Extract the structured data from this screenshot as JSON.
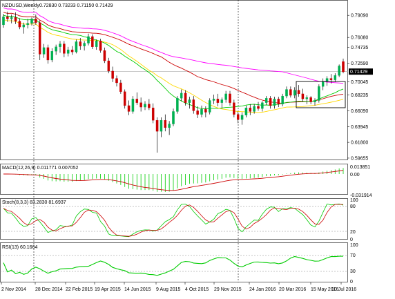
{
  "chart_data": [
    {
      "type": "candlestick",
      "title": "NZDUSD,Weekly",
      "ohlc_label": "0.72830 0.73233 0.71150 0.71429",
      "last_price": "0.71429",
      "ylim": [
        0.5965,
        0.808
      ],
      "yticks": [
        "0.79090",
        "0.76080",
        "0.74735",
        "0.72590",
        "0.71429",
        "0.70045",
        "0.68235",
        "0.66090",
        "0.63945",
        "0.61800",
        "0.59655"
      ],
      "xticks": [
        "2 Nov 2014",
        "28 Dec 2014",
        "22 Feb 2015",
        "19 Apr 2015",
        "14 Jun 2015",
        "9 Aug 2015",
        "4 Oct 2015",
        "29 Nov 2015",
        "24 Jan 2016",
        "20 Mar 2016",
        "15 May 2016",
        "10 Jul 2016"
      ],
      "series": [
        {
          "values": [
            {
              "o": 0.778,
              "h": 0.793,
              "l": 0.774,
              "c": 0.789
            },
            {
              "o": 0.789,
              "h": 0.796,
              "l": 0.782,
              "c": 0.786
            },
            {
              "o": 0.786,
              "h": 0.792,
              "l": 0.78,
              "c": 0.788
            },
            {
              "o": 0.788,
              "h": 0.795,
              "l": 0.779,
              "c": 0.783
            },
            {
              "o": 0.783,
              "h": 0.787,
              "l": 0.772,
              "c": 0.775
            },
            {
              "o": 0.775,
              "h": 0.781,
              "l": 0.766,
              "c": 0.778
            },
            {
              "o": 0.778,
              "h": 0.786,
              "l": 0.773,
              "c": 0.78
            },
            {
              "o": 0.78,
              "h": 0.788,
              "l": 0.777,
              "c": 0.786
            },
            {
              "o": 0.786,
              "h": 0.792,
              "l": 0.778,
              "c": 0.781
            },
            {
              "o": 0.781,
              "h": 0.784,
              "l": 0.73,
              "c": 0.738
            },
            {
              "o": 0.738,
              "h": 0.752,
              "l": 0.733,
              "c": 0.747
            },
            {
              "o": 0.747,
              "h": 0.751,
              "l": 0.725,
              "c": 0.73
            },
            {
              "o": 0.73,
              "h": 0.746,
              "l": 0.727,
              "c": 0.742
            },
            {
              "o": 0.742,
              "h": 0.751,
              "l": 0.737,
              "c": 0.748
            },
            {
              "o": 0.748,
              "h": 0.756,
              "l": 0.74,
              "c": 0.752
            },
            {
              "o": 0.752,
              "h": 0.756,
              "l": 0.734,
              "c": 0.739
            },
            {
              "o": 0.739,
              "h": 0.748,
              "l": 0.735,
              "c": 0.744
            },
            {
              "o": 0.744,
              "h": 0.749,
              "l": 0.737,
              "c": 0.741
            },
            {
              "o": 0.741,
              "h": 0.758,
              "l": 0.739,
              "c": 0.755
            },
            {
              "o": 0.755,
              "h": 0.76,
              "l": 0.744,
              "c": 0.749
            },
            {
              "o": 0.749,
              "h": 0.756,
              "l": 0.743,
              "c": 0.753
            },
            {
              "o": 0.753,
              "h": 0.766,
              "l": 0.75,
              "c": 0.762
            },
            {
              "o": 0.762,
              "h": 0.765,
              "l": 0.745,
              "c": 0.748
            },
            {
              "o": 0.748,
              "h": 0.758,
              "l": 0.744,
              "c": 0.756
            },
            {
              "o": 0.756,
              "h": 0.759,
              "l": 0.74,
              "c": 0.743
            },
            {
              "o": 0.743,
              "h": 0.747,
              "l": 0.726,
              "c": 0.729
            },
            {
              "o": 0.729,
              "h": 0.733,
              "l": 0.712,
              "c": 0.715
            },
            {
              "o": 0.715,
              "h": 0.721,
              "l": 0.7,
              "c": 0.705
            },
            {
              "o": 0.705,
              "h": 0.709,
              "l": 0.694,
              "c": 0.699
            },
            {
              "o": 0.699,
              "h": 0.703,
              "l": 0.684,
              "c": 0.687
            },
            {
              "o": 0.687,
              "h": 0.69,
              "l": 0.664,
              "c": 0.668
            },
            {
              "o": 0.668,
              "h": 0.675,
              "l": 0.655,
              "c": 0.66
            },
            {
              "o": 0.66,
              "h": 0.681,
              "l": 0.657,
              "c": 0.677
            },
            {
              "o": 0.677,
              "h": 0.686,
              "l": 0.669,
              "c": 0.672
            },
            {
              "o": 0.672,
              "h": 0.679,
              "l": 0.66,
              "c": 0.666
            },
            {
              "o": 0.666,
              "h": 0.674,
              "l": 0.662,
              "c": 0.67
            },
            {
              "o": 0.67,
              "h": 0.677,
              "l": 0.662,
              "c": 0.665
            },
            {
              "o": 0.665,
              "h": 0.671,
              "l": 0.644,
              "c": 0.648
            },
            {
              "o": 0.648,
              "h": 0.652,
              "l": 0.604,
              "c": 0.633
            },
            {
              "o": 0.633,
              "h": 0.652,
              "l": 0.625,
              "c": 0.648
            },
            {
              "o": 0.648,
              "h": 0.656,
              "l": 0.633,
              "c": 0.638
            },
            {
              "o": 0.638,
              "h": 0.647,
              "l": 0.628,
              "c": 0.643
            },
            {
              "o": 0.643,
              "h": 0.664,
              "l": 0.64,
              "c": 0.66
            },
            {
              "o": 0.66,
              "h": 0.681,
              "l": 0.657,
              "c": 0.678
            },
            {
              "o": 0.678,
              "h": 0.69,
              "l": 0.674,
              "c": 0.685
            },
            {
              "o": 0.685,
              "h": 0.689,
              "l": 0.668,
              "c": 0.672
            },
            {
              "o": 0.672,
              "h": 0.68,
              "l": 0.664,
              "c": 0.676
            },
            {
              "o": 0.676,
              "h": 0.681,
              "l": 0.657,
              "c": 0.661
            },
            {
              "o": 0.661,
              "h": 0.667,
              "l": 0.651,
              "c": 0.656
            },
            {
              "o": 0.656,
              "h": 0.668,
              "l": 0.652,
              "c": 0.663
            },
            {
              "o": 0.663,
              "h": 0.667,
              "l": 0.652,
              "c": 0.659
            },
            {
              "o": 0.659,
              "h": 0.678,
              "l": 0.656,
              "c": 0.675
            },
            {
              "o": 0.675,
              "h": 0.683,
              "l": 0.67,
              "c": 0.677
            },
            {
              "o": 0.677,
              "h": 0.684,
              "l": 0.667,
              "c": 0.672
            },
            {
              "o": 0.672,
              "h": 0.679,
              "l": 0.664,
              "c": 0.676
            },
            {
              "o": 0.676,
              "h": 0.688,
              "l": 0.672,
              "c": 0.684
            },
            {
              "o": 0.684,
              "h": 0.688,
              "l": 0.668,
              "c": 0.672
            },
            {
              "o": 0.672,
              "h": 0.676,
              "l": 0.652,
              "c": 0.656
            },
            {
              "o": 0.656,
              "h": 0.66,
              "l": 0.644,
              "c": 0.649
            },
            {
              "o": 0.649,
              "h": 0.659,
              "l": 0.642,
              "c": 0.655
            },
            {
              "o": 0.655,
              "h": 0.668,
              "l": 0.652,
              "c": 0.665
            },
            {
              "o": 0.665,
              "h": 0.67,
              "l": 0.655,
              "c": 0.66
            },
            {
              "o": 0.66,
              "h": 0.67,
              "l": 0.657,
              "c": 0.667
            },
            {
              "o": 0.667,
              "h": 0.673,
              "l": 0.661,
              "c": 0.664
            },
            {
              "o": 0.664,
              "h": 0.674,
              "l": 0.66,
              "c": 0.672
            },
            {
              "o": 0.672,
              "h": 0.681,
              "l": 0.669,
              "c": 0.678
            },
            {
              "o": 0.678,
              "h": 0.681,
              "l": 0.664,
              "c": 0.668
            },
            {
              "o": 0.668,
              "h": 0.68,
              "l": 0.664,
              "c": 0.677
            },
            {
              "o": 0.677,
              "h": 0.68,
              "l": 0.666,
              "c": 0.67
            },
            {
              "o": 0.67,
              "h": 0.684,
              "l": 0.667,
              "c": 0.681
            },
            {
              "o": 0.681,
              "h": 0.694,
              "l": 0.678,
              "c": 0.69
            },
            {
              "o": 0.69,
              "h": 0.694,
              "l": 0.679,
              "c": 0.682
            },
            {
              "o": 0.682,
              "h": 0.693,
              "l": 0.678,
              "c": 0.689
            },
            {
              "o": 0.689,
              "h": 0.696,
              "l": 0.68,
              "c": 0.684
            },
            {
              "o": 0.684,
              "h": 0.691,
              "l": 0.673,
              "c": 0.677
            },
            {
              "o": 0.677,
              "h": 0.682,
              "l": 0.67,
              "c": 0.679
            },
            {
              "o": 0.679,
              "h": 0.681,
              "l": 0.67,
              "c": 0.673
            },
            {
              "o": 0.673,
              "h": 0.678,
              "l": 0.668,
              "c": 0.675
            },
            {
              "o": 0.675,
              "h": 0.697,
              "l": 0.672,
              "c": 0.694
            },
            {
              "o": 0.694,
              "h": 0.705,
              "l": 0.689,
              "c": 0.701
            },
            {
              "o": 0.701,
              "h": 0.708,
              "l": 0.695,
              "c": 0.705
            },
            {
              "o": 0.705,
              "h": 0.711,
              "l": 0.698,
              "c": 0.703
            },
            {
              "o": 0.703,
              "h": 0.712,
              "l": 0.7,
              "c": 0.709
            },
            {
              "o": 0.709,
              "h": 0.724,
              "l": 0.707,
              "c": 0.722
            },
            {
              "o": 0.728,
              "h": 0.732,
              "l": 0.712,
              "c": 0.714
            }
          ]
        }
      ],
      "overlays": [
        {
          "name": "MA-slow",
          "color": "#ff00ff"
        },
        {
          "name": "MA-mid",
          "color": "#cc0000"
        },
        {
          "name": "MA-fast",
          "color": "#00cc00"
        },
        {
          "name": "MA-yellow",
          "color": "#ffd800"
        }
      ],
      "annotation": "rectangle around the last weeks"
    },
    {
      "type": "histogram",
      "title": "MACD(12,26,9) 0.011771 0.007052",
      "yticks": [
        "0.013851",
        "0.00",
        "-0.031914"
      ]
    },
    {
      "type": "line",
      "title": "Stoch(8,3,3) 83.2830 81.6937",
      "yticks": [
        "100",
        "80",
        "20",
        "0"
      ]
    },
    {
      "type": "line",
      "title": "RSI(13) 60.1664",
      "yticks": [
        "100",
        "70",
        "30",
        "0"
      ]
    }
  ],
  "colors": {
    "bull": "#00b050",
    "bear": "#cc0000",
    "stoch_main": "#00cc00",
    "stoch_signal": "#cc0000",
    "rsi": "#00cc00",
    "macd_hist": "#00cc00",
    "macd_signal": "#cc0000"
  }
}
